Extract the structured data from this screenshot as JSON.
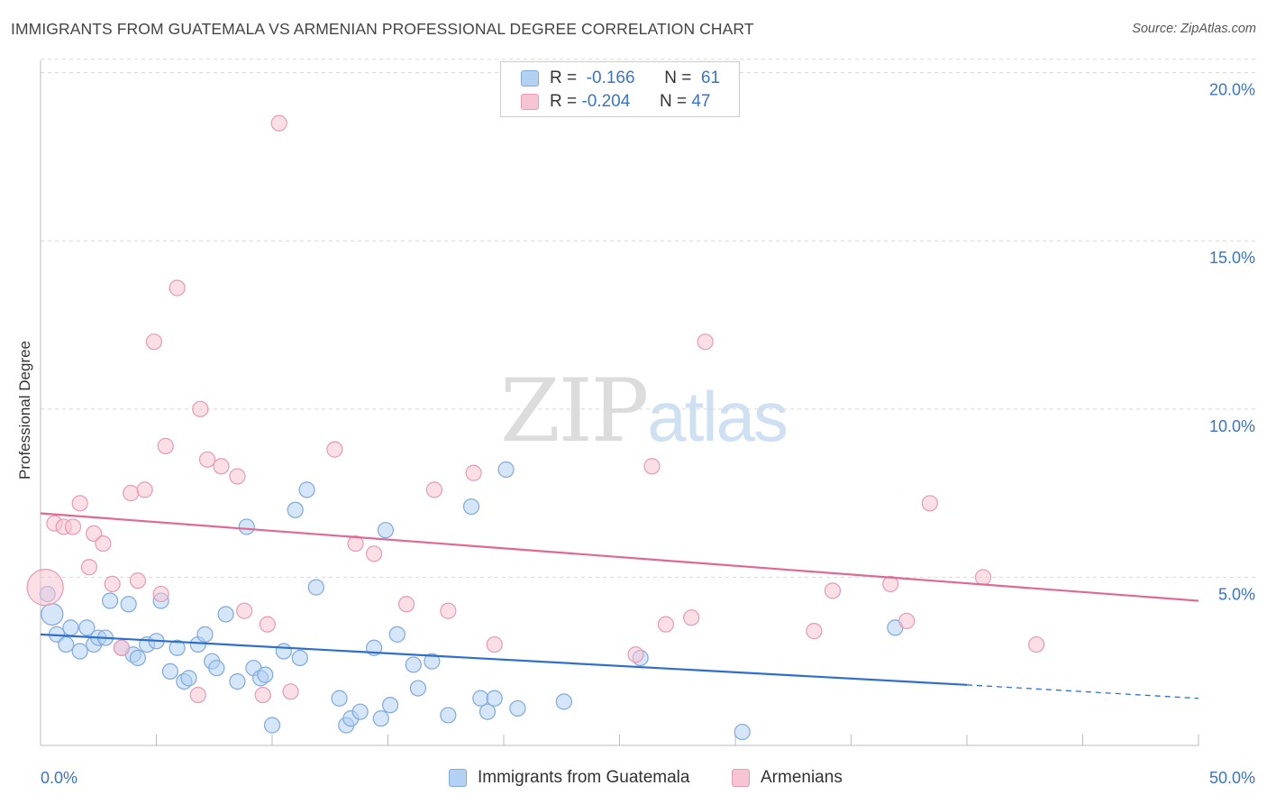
{
  "title": "IMMIGRANTS FROM GUATEMALA VS ARMENIAN PROFESSIONAL DEGREE CORRELATION CHART",
  "source": "Source: ZipAtlas.com",
  "watermark": {
    "zip": "ZIP",
    "atlas": "atlas"
  },
  "legend_top": {
    "series1": {
      "r_label": "R =",
      "r_value": "-0.166",
      "n_label": "N =",
      "n_value": "61"
    },
    "series2": {
      "r_label": "R =",
      "r_value": "-0.204",
      "n_label": "N =",
      "n_value": "47"
    }
  },
  "colors": {
    "blue_fill": "#b3d1f3",
    "blue_stroke": "#7fa9dd",
    "blue_line": "#2f6fcc",
    "pink_fill": "#f7c4d4",
    "pink_stroke": "#e89ab3",
    "pink_line": "#e06892",
    "grid": "#d8d8d8",
    "tick_label": "#3a74c7"
  },
  "chart_data": {
    "type": "scatter",
    "title": "IMMIGRANTS FROM GUATEMALA VS ARMENIAN PROFESSIONAL DEGREE CORRELATION CHART",
    "xlabel": "",
    "ylabel": "Professional Degree",
    "xlim": [
      0,
      50
    ],
    "ylim": [
      0,
      20.5
    ],
    "x_tick_labels": [
      "0.0%",
      "50.0%"
    ],
    "y_ticks": [
      5,
      10,
      15,
      20
    ],
    "y_tick_labels": [
      "5.0%",
      "10.0%",
      "15.0%",
      "20.0%"
    ],
    "series": [
      {
        "name": "Immigrants from Guatemala",
        "color": "blue",
        "r": -0.166,
        "n": 61,
        "trend": {
          "x0": 0,
          "y0": 3.3,
          "x1": 40,
          "y1": 1.8,
          "dash_x1": 50,
          "dash_y1": 1.4
        },
        "points": [
          [
            0.5,
            3.9
          ],
          [
            0.7,
            3.3
          ],
          [
            1.1,
            3.0
          ],
          [
            1.3,
            3.5
          ],
          [
            1.7,
            2.8
          ],
          [
            2.0,
            3.5
          ],
          [
            2.3,
            3.0
          ],
          [
            2.5,
            3.2
          ],
          [
            2.8,
            3.2
          ],
          [
            3.0,
            4.3
          ],
          [
            3.5,
            2.9
          ],
          [
            3.8,
            4.2
          ],
          [
            4.0,
            2.7
          ],
          [
            4.2,
            2.6
          ],
          [
            4.6,
            3.0
          ],
          [
            5.0,
            3.1
          ],
          [
            5.2,
            4.3
          ],
          [
            5.6,
            2.2
          ],
          [
            5.9,
            2.9
          ],
          [
            6.2,
            1.9
          ],
          [
            6.4,
            2.0
          ],
          [
            6.8,
            3.0
          ],
          [
            7.1,
            3.3
          ],
          [
            7.4,
            2.5
          ],
          [
            7.6,
            2.3
          ],
          [
            8.0,
            3.9
          ],
          [
            8.5,
            1.9
          ],
          [
            8.9,
            6.5
          ],
          [
            9.2,
            2.3
          ],
          [
            9.5,
            2.0
          ],
          [
            9.7,
            2.1
          ],
          [
            10.0,
            0.6
          ],
          [
            10.5,
            2.8
          ],
          [
            11.0,
            7.0
          ],
          [
            11.2,
            2.6
          ],
          [
            11.5,
            7.6
          ],
          [
            11.9,
            4.7
          ],
          [
            12.9,
            1.4
          ],
          [
            13.2,
            0.6
          ],
          [
            13.4,
            0.8
          ],
          [
            13.8,
            1.0
          ],
          [
            14.4,
            2.9
          ],
          [
            14.7,
            0.8
          ],
          [
            14.9,
            6.4
          ],
          [
            15.1,
            1.2
          ],
          [
            15.4,
            3.3
          ],
          [
            16.1,
            2.4
          ],
          [
            16.3,
            1.7
          ],
          [
            16.9,
            2.5
          ],
          [
            17.6,
            0.9
          ],
          [
            18.6,
            7.1
          ],
          [
            19.0,
            1.4
          ],
          [
            19.3,
            1.0
          ],
          [
            19.6,
            1.4
          ],
          [
            20.1,
            8.2
          ],
          [
            20.6,
            1.1
          ],
          [
            22.6,
            1.3
          ],
          [
            25.9,
            2.6
          ],
          [
            30.3,
            0.4
          ],
          [
            36.9,
            3.5
          ],
          [
            0.3,
            4.5
          ]
        ]
      },
      {
        "name": "Armenians",
        "color": "pink",
        "r": -0.204,
        "n": 47,
        "trend": {
          "x0": 0,
          "y0": 6.9,
          "x1": 50,
          "y1": 4.3
        },
        "points": [
          [
            0.2,
            4.7
          ],
          [
            0.6,
            6.6
          ],
          [
            1.0,
            6.5
          ],
          [
            1.4,
            6.5
          ],
          [
            1.7,
            7.2
          ],
          [
            2.1,
            5.3
          ],
          [
            2.3,
            6.3
          ],
          [
            2.7,
            6.0
          ],
          [
            3.1,
            4.8
          ],
          [
            3.5,
            2.9
          ],
          [
            3.9,
            7.5
          ],
          [
            4.2,
            4.9
          ],
          [
            4.5,
            7.6
          ],
          [
            4.9,
            12.0
          ],
          [
            5.2,
            4.5
          ],
          [
            5.4,
            8.9
          ],
          [
            5.9,
            13.6
          ],
          [
            6.8,
            1.5
          ],
          [
            6.9,
            10.0
          ],
          [
            7.2,
            8.5
          ],
          [
            7.8,
            8.3
          ],
          [
            8.5,
            8.0
          ],
          [
            8.8,
            4.0
          ],
          [
            9.6,
            1.5
          ],
          [
            9.8,
            3.6
          ],
          [
            10.3,
            18.5
          ],
          [
            10.8,
            1.6
          ],
          [
            12.7,
            8.8
          ],
          [
            13.6,
            6.0
          ],
          [
            14.4,
            5.7
          ],
          [
            15.8,
            4.2
          ],
          [
            17.0,
            7.6
          ],
          [
            17.6,
            4.0
          ],
          [
            18.7,
            8.1
          ],
          [
            19.6,
            3.0
          ],
          [
            25.7,
            2.7
          ],
          [
            26.4,
            8.3
          ],
          [
            27.0,
            3.6
          ],
          [
            28.1,
            3.8
          ],
          [
            28.7,
            12.0
          ],
          [
            33.4,
            3.4
          ],
          [
            34.2,
            4.6
          ],
          [
            36.7,
            4.8
          ],
          [
            37.4,
            3.7
          ],
          [
            38.4,
            7.2
          ],
          [
            40.7,
            5.0
          ],
          [
            43.0,
            3.0
          ]
        ]
      }
    ]
  },
  "legend_bottom": [
    "Immigrants from Guatemala",
    "Armenians"
  ]
}
